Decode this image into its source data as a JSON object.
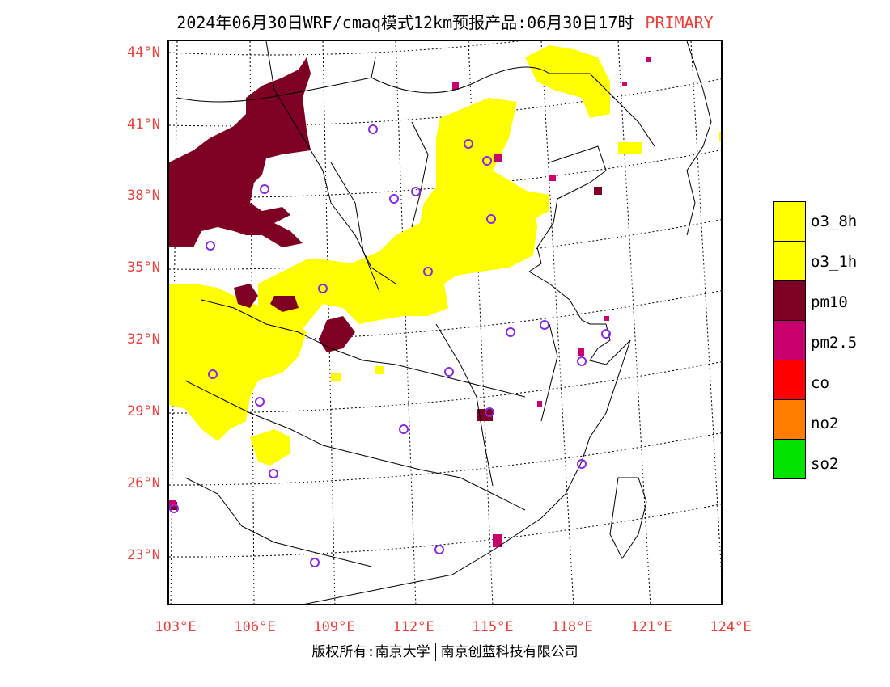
{
  "title": {
    "text": "2024年06月30日WRF/cmaq模式12km预报产品:06月30日17时",
    "tag": "PRIMARY"
  },
  "axes": {
    "lat_labels": [
      "44°N",
      "41°N",
      "38°N",
      "35°N",
      "32°N",
      "29°N",
      "26°N",
      "23°N"
    ],
    "lon_labels": [
      "103°E",
      "106°E",
      "109°E",
      "112°E",
      "115°E",
      "118°E",
      "121°E",
      "124°E"
    ]
  },
  "legend": {
    "items": [
      {
        "label": "o3_8h",
        "color": "#ffff00"
      },
      {
        "label": "o3_1h",
        "color": "#ffff00"
      },
      {
        "label": "pm10",
        "color": "#7e0023"
      },
      {
        "label": "pm2.5",
        "color": "#c8006e"
      },
      {
        "label": "co",
        "color": "#ff0000"
      },
      {
        "label": "no2",
        "color": "#ff7e00"
      },
      {
        "label": "so2",
        "color": "#00e400"
      }
    ]
  },
  "copyright": {
    "left": "版权所有:南京大学",
    "right": "南京创蓝科技有限公司"
  },
  "colors": {
    "axis_label": "#e8413c",
    "station_marker": "#8a2be2"
  }
}
